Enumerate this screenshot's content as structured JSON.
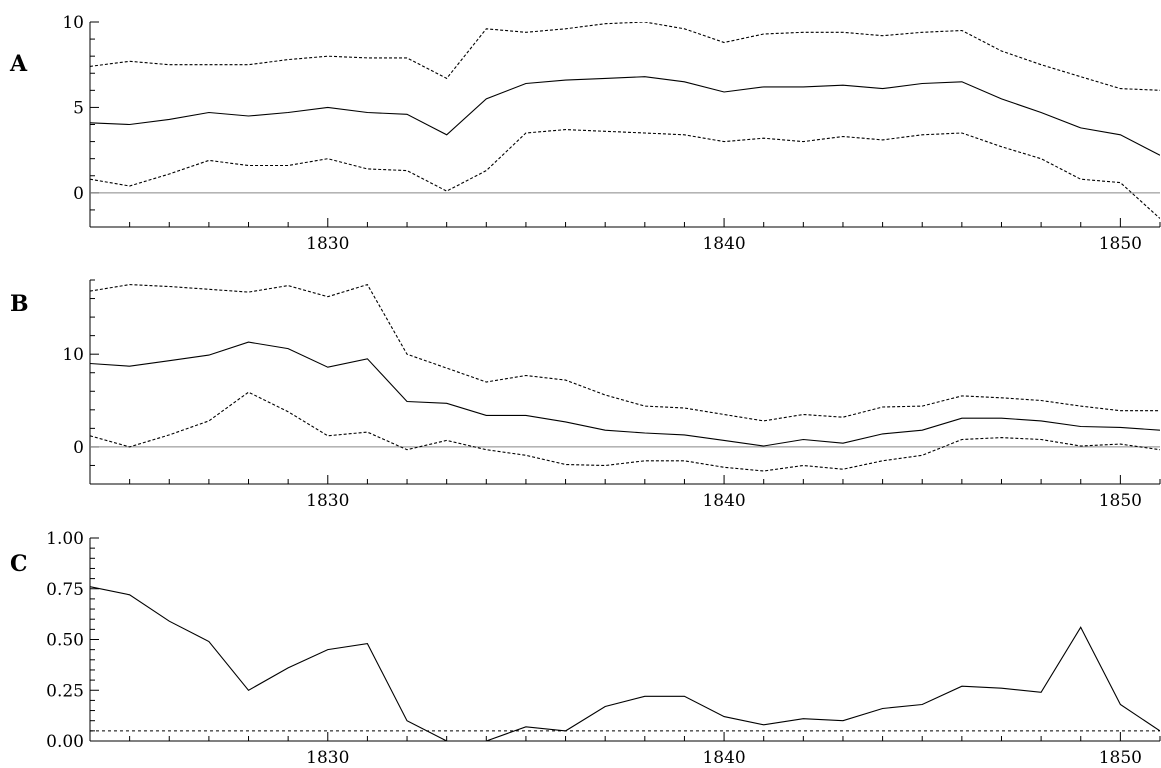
{
  "chart_data": [
    {
      "panel_label": "A",
      "type": "line",
      "x": [
        1824,
        1825,
        1826,
        1827,
        1828,
        1829,
        1830,
        1831,
        1832,
        1833,
        1834,
        1835,
        1836,
        1837,
        1838,
        1839,
        1840,
        1841,
        1842,
        1843,
        1844,
        1845,
        1846,
        1847,
        1848,
        1849,
        1850,
        1851
      ],
      "series": [
        {
          "style": "dotted",
          "values": [
            7.4,
            7.7,
            7.5,
            7.5,
            7.5,
            7.8,
            8.0,
            7.9,
            7.9,
            6.7,
            9.6,
            9.4,
            9.6,
            9.9,
            10.0,
            9.6,
            8.8,
            9.3,
            9.4,
            9.4,
            9.2,
            9.4,
            9.5,
            8.3,
            7.5,
            6.8,
            6.1,
            6.0
          ]
        },
        {
          "style": "solid",
          "values": [
            4.1,
            4.0,
            4.3,
            4.7,
            4.5,
            4.7,
            5.0,
            4.7,
            4.6,
            3.4,
            5.5,
            6.4,
            6.6,
            6.7,
            6.8,
            6.5,
            5.9,
            6.2,
            6.2,
            6.3,
            6.1,
            6.4,
            6.5,
            5.5,
            4.7,
            3.8,
            3.4,
            2.2
          ]
        },
        {
          "style": "dotted",
          "values": [
            0.8,
            0.4,
            1.1,
            1.9,
            1.6,
            1.6,
            2.0,
            1.4,
            1.3,
            0.1,
            1.3,
            3.5,
            3.7,
            3.6,
            3.5,
            3.4,
            3.0,
            3.2,
            3.0,
            3.3,
            3.1,
            3.4,
            3.5,
            2.7,
            2.0,
            0.8,
            0.6,
            -1.5
          ]
        }
      ],
      "reference_line": 0,
      "ylim": [
        -2,
        10
      ],
      "yticks": [
        0,
        5,
        10
      ],
      "ytick_labels": [
        "0",
        "5",
        "10"
      ],
      "xlim": [
        1824,
        1851
      ],
      "xticks": [
        1830,
        1840,
        1850
      ],
      "xtick_labels": [
        "1830",
        "1840",
        "1850"
      ],
      "grid": false
    },
    {
      "panel_label": "B",
      "type": "line",
      "x": [
        1824,
        1825,
        1826,
        1827,
        1828,
        1829,
        1830,
        1831,
        1832,
        1833,
        1834,
        1835,
        1836,
        1837,
        1838,
        1839,
        1840,
        1841,
        1842,
        1843,
        1844,
        1845,
        1846,
        1847,
        1848,
        1849,
        1850,
        1851
      ],
      "series": [
        {
          "style": "dotted",
          "values": [
            16.8,
            17.5,
            17.3,
            17.0,
            16.7,
            17.4,
            16.2,
            17.5,
            10.0,
            8.5,
            7.0,
            7.7,
            7.2,
            5.6,
            4.4,
            4.2,
            3.5,
            2.8,
            3.5,
            3.2,
            4.3,
            4.4,
            5.5,
            5.3,
            5.0,
            4.4,
            3.9,
            3.9
          ]
        },
        {
          "style": "solid",
          "values": [
            9.0,
            8.7,
            9.3,
            9.9,
            11.3,
            10.6,
            8.6,
            9.5,
            4.9,
            4.7,
            3.4,
            3.4,
            2.7,
            1.8,
            1.5,
            1.3,
            0.7,
            0.1,
            0.8,
            0.4,
            1.4,
            1.8,
            3.1,
            3.1,
            2.8,
            2.2,
            2.1,
            1.8
          ]
        },
        {
          "style": "dotted",
          "values": [
            1.2,
            0.0,
            1.3,
            2.8,
            5.9,
            3.8,
            1.2,
            1.6,
            -0.3,
            0.7,
            -0.3,
            -0.9,
            -1.9,
            -2.0,
            -1.5,
            -1.5,
            -2.2,
            -2.6,
            -2.0,
            -2.4,
            -1.5,
            -0.9,
            0.8,
            1.0,
            0.8,
            0.1,
            0.3,
            -0.3
          ]
        }
      ],
      "reference_line": 0,
      "ylim": [
        -4,
        18
      ],
      "yticks": [
        0,
        10
      ],
      "ytick_labels": [
        "0",
        "10"
      ],
      "xlim": [
        1824,
        1851
      ],
      "xticks": [
        1830,
        1840,
        1850
      ],
      "xtick_labels": [
        "1830",
        "1840",
        "1850"
      ],
      "grid": false
    },
    {
      "panel_label": "C",
      "type": "line",
      "x": [
        1824,
        1825,
        1826,
        1827,
        1828,
        1829,
        1830,
        1831,
        1832,
        1833,
        1834,
        1835,
        1836,
        1837,
        1838,
        1839,
        1840,
        1841,
        1842,
        1843,
        1844,
        1845,
        1846,
        1847,
        1848,
        1849,
        1850,
        1851
      ],
      "series": [
        {
          "style": "solid",
          "values": [
            0.76,
            0.72,
            0.59,
            0.49,
            0.25,
            0.36,
            0.45,
            0.48,
            0.1,
            0.0,
            0.0,
            0.07,
            0.05,
            0.17,
            0.22,
            0.22,
            0.12,
            0.08,
            0.11,
            0.1,
            0.16,
            0.18,
            0.27,
            0.26,
            0.24,
            0.56,
            0.18,
            0.05
          ]
        }
      ],
      "reference_line": 0.05,
      "reference_style": "dotted",
      "ylim": [
        0,
        1
      ],
      "yticks": [
        0,
        0.25,
        0.5,
        0.75,
        1.0
      ],
      "ytick_labels": [
        "0.00",
        "0.25",
        "0.50",
        "0.75",
        "1.00"
      ],
      "xlim": [
        1824,
        1851
      ],
      "xticks": [
        1830,
        1840,
        1850
      ],
      "xtick_labels": [
        "1830",
        "1840",
        "1850"
      ],
      "grid": false
    }
  ]
}
